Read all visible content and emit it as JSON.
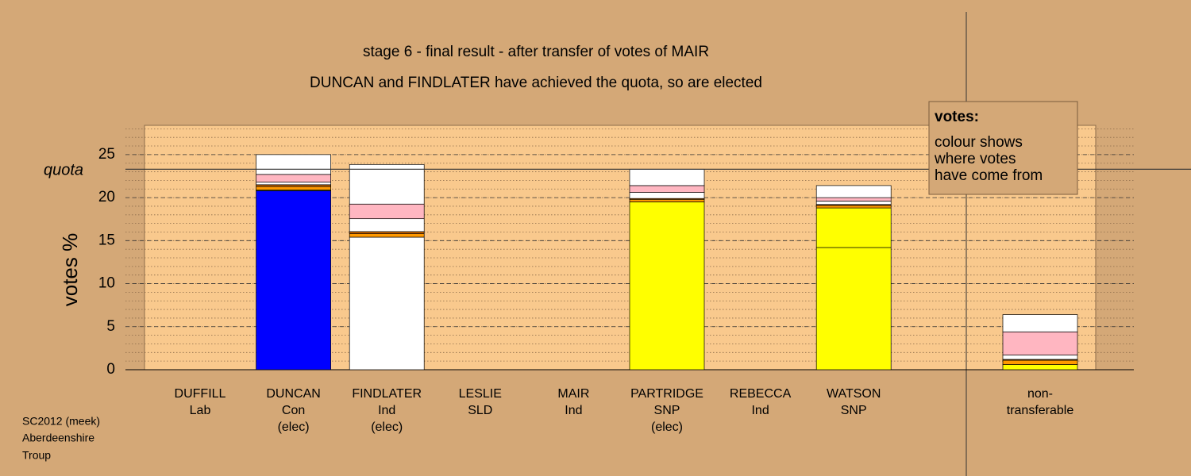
{
  "chart_data": {
    "type": "bar",
    "stacked": true,
    "title": "stage 6 - final result - after transfer of votes of MAIR",
    "subtitle": "DUNCAN and FINDLATER have achieved the quota, so are elected",
    "ylabel": "votes %",
    "categories": [
      "DUFFILL",
      "DUNCAN",
      "FINDLATER",
      "LESLIE",
      "MAIR",
      "PARTRIDGE",
      "REBECCA",
      "WATSON",
      "non-"
    ],
    "parties": [
      "Lab",
      "Con",
      "Ind",
      "SLD",
      "Ind",
      "SNP",
      "Ind",
      "SNP",
      "transferable"
    ],
    "status": [
      null,
      "(elec)",
      "(elec)",
      null,
      null,
      "(elec)",
      null,
      null,
      null
    ],
    "series": [
      {
        "color": "#0000ff",
        "values": [
          0,
          20.8,
          0,
          0,
          0,
          0,
          0,
          0,
          0
        ]
      },
      {
        "color": "#ffffff",
        "values": [
          0,
          0,
          15.4,
          0,
          0,
          0,
          0,
          0,
          0
        ]
      },
      {
        "color": "#ffff00",
        "values": [
          0,
          0,
          0,
          0,
          0,
          19.5,
          0,
          0,
          0
        ]
      },
      {
        "color": "#ffff00",
        "values": [
          0,
          0,
          0,
          0,
          0,
          0,
          0,
          14.2,
          0
        ]
      },
      {
        "color": "#ffff00",
        "values": [
          0,
          0.1,
          0,
          0,
          0,
          0,
          0,
          4.6,
          0.6
        ]
      },
      {
        "color": "#ff9900",
        "values": [
          0,
          0.4,
          0.4,
          0,
          0,
          0.3,
          0,
          0.3,
          0.5
        ]
      },
      {
        "color": "#cc6600",
        "values": [
          0,
          0.2,
          0.25,
          0,
          0,
          0.1,
          0,
          0.1,
          0.1
        ]
      },
      {
        "color": "#ffffff",
        "values": [
          0,
          0.3,
          1.5,
          0,
          0,
          0.7,
          0,
          0.4,
          0.5
        ]
      },
      {
        "color": "#ffb6c1",
        "values": [
          0,
          0.9,
          1.7,
          0,
          0,
          0.8,
          0,
          0.4,
          2.7
        ]
      },
      {
        "color": "#ffffff",
        "values": [
          0,
          2.3,
          4.6,
          0,
          0,
          1.9,
          0,
          1.4,
          2.0
        ]
      }
    ],
    "quota": {
      "label": "quota",
      "value": 23.3
    },
    "ylim": [
      0,
      28.4
    ],
    "yticks": [
      0,
      5,
      10,
      15,
      20,
      25
    ],
    "minor_grid_step": 1,
    "grid": true,
    "note": {
      "title": "votes:",
      "lines": [
        "colour shows",
        "where votes",
        "have come from"
      ]
    },
    "footer": [
      "SC2012 (meek)",
      "Aberdeenshire",
      "Troup"
    ]
  }
}
